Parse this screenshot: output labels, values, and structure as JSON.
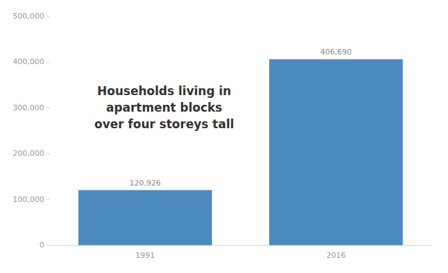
{
  "chart_data": {
    "type": "bar",
    "categories": [
      "1991",
      "2016"
    ],
    "values": [
      120926,
      406690
    ],
    "value_labels": [
      "120,926",
      "406,690"
    ],
    "data_labels": true,
    "color": "#4d8bbf",
    "annotation": "Households living in\napartment blocks\nover four storeys tall",
    "ylim": [
      0,
      500000
    ],
    "yticks": [
      0,
      {
        "value": 100000,
        "label": "100,000"
      },
      {
        "value": 200000,
        "label": "200,000"
      },
      {
        "value": 300000,
        "label": "300,000"
      },
      {
        "value": 400000,
        "label": "400,000"
      },
      {
        "value": 500000,
        "label": "500,000"
      }
    ],
    "grid": false
  }
}
